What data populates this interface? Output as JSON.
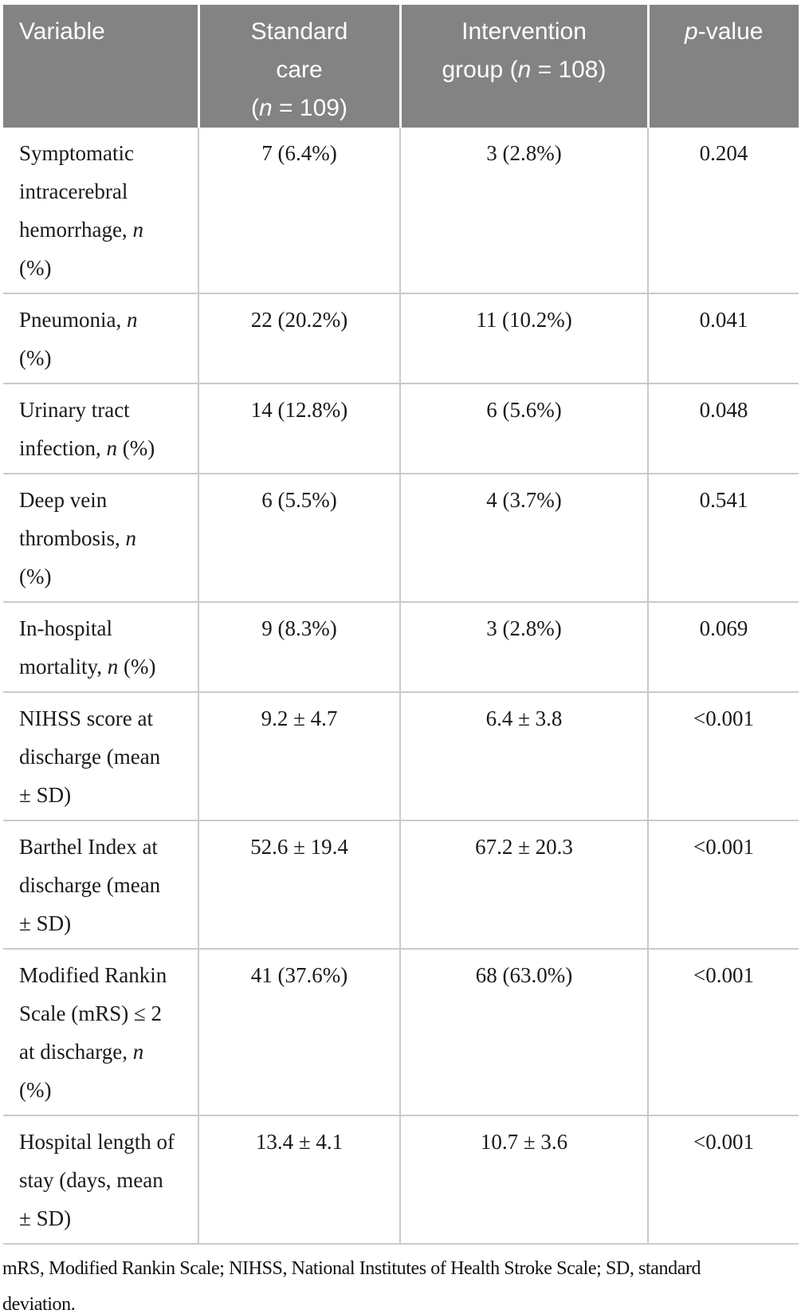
{
  "colors": {
    "header_bg": "#838383",
    "header_text": "#ffffff",
    "grid_line": "#cacaca",
    "body_text": "#1a1a1a"
  },
  "table": {
    "header": [
      {
        "id": "variable",
        "lines": [
          [
            {
              "t": "Variable"
            }
          ]
        ]
      },
      {
        "id": "standard-care",
        "lines": [
          [
            {
              "t": "Standard"
            }
          ],
          [
            {
              "t": "care"
            }
          ],
          [
            {
              "t": "("
            },
            {
              "t": "n",
              "i": true
            },
            {
              "t": " = 109)"
            }
          ]
        ]
      },
      {
        "id": "intervention-group",
        "lines": [
          [
            {
              "t": "Intervention"
            }
          ],
          [
            {
              "t": "group ("
            },
            {
              "t": "n",
              "i": true
            },
            {
              "t": " = 108)"
            }
          ]
        ]
      },
      {
        "id": "p-value",
        "lines": [
          [
            {
              "t": "p",
              "i": true
            },
            {
              "t": "-value"
            }
          ]
        ]
      }
    ],
    "rows": [
      {
        "variable": [
          [
            {
              "t": "Symptomatic"
            }
          ],
          [
            {
              "t": "intracerebral"
            }
          ],
          [
            {
              "t": "hemorrhage, "
            },
            {
              "t": "n",
              "i": true
            }
          ],
          [
            {
              "t": "(%)"
            }
          ]
        ],
        "standard_care": "7 (6.4%)",
        "intervention": "3 (2.8%)",
        "p_value": "0.204"
      },
      {
        "variable": [
          [
            {
              "t": "Pneumonia, "
            },
            {
              "t": "n",
              "i": true
            }
          ],
          [
            {
              "t": "(%)"
            }
          ]
        ],
        "standard_care": "22 (20.2%)",
        "intervention": "11 (10.2%)",
        "p_value": "0.041"
      },
      {
        "variable": [
          [
            {
              "t": "Urinary tract"
            }
          ],
          [
            {
              "t": "infection, "
            },
            {
              "t": "n",
              "i": true
            },
            {
              "t": " (%)"
            }
          ]
        ],
        "standard_care": "14 (12.8%)",
        "intervention": "6 (5.6%)",
        "p_value": "0.048"
      },
      {
        "variable": [
          [
            {
              "t": "Deep vein"
            }
          ],
          [
            {
              "t": "thrombosis, "
            },
            {
              "t": "n",
              "i": true
            }
          ],
          [
            {
              "t": "(%)"
            }
          ]
        ],
        "standard_care": "6 (5.5%)",
        "intervention": "4 (3.7%)",
        "p_value": "0.541"
      },
      {
        "variable": [
          [
            {
              "t": "In-hospital"
            }
          ],
          [
            {
              "t": "mortality, "
            },
            {
              "t": "n",
              "i": true
            },
            {
              "t": " (%)"
            }
          ]
        ],
        "standard_care": "9 (8.3%)",
        "intervention": "3 (2.8%)",
        "p_value": "0.069"
      },
      {
        "variable": [
          [
            {
              "t": "NIHSS score at"
            }
          ],
          [
            {
              "t": "discharge (mean"
            }
          ],
          [
            {
              "t": "± SD)"
            }
          ]
        ],
        "standard_care": "9.2 ± 4.7",
        "intervention": "6.4 ± 3.8",
        "p_value": "<0.001"
      },
      {
        "variable": [
          [
            {
              "t": "Barthel Index at"
            }
          ],
          [
            {
              "t": "discharge (mean"
            }
          ],
          [
            {
              "t": "± SD)"
            }
          ]
        ],
        "standard_care": "52.6 ± 19.4",
        "intervention": "67.2 ± 20.3",
        "p_value": "<0.001"
      },
      {
        "variable": [
          [
            {
              "t": "Modified Rankin"
            }
          ],
          [
            {
              "t": "Scale (mRS) ≤ 2"
            }
          ],
          [
            {
              "t": "at discharge, "
            },
            {
              "t": "n",
              "i": true
            }
          ],
          [
            {
              "t": "(%)"
            }
          ]
        ],
        "standard_care": "41 (37.6%)",
        "intervention": "68 (63.0%)",
        "p_value": "<0.001"
      },
      {
        "variable": [
          [
            {
              "t": "Hospital length of"
            }
          ],
          [
            {
              "t": "stay (days, mean"
            }
          ],
          [
            {
              "t": "± SD)"
            }
          ]
        ],
        "standard_care": "13.4 ± 4.1",
        "intervention": "10.7 ± 3.6",
        "p_value": "<0.001"
      }
    ],
    "footnote_lines": [
      [
        {
          "t": "mRS, Modified Rankin Scale; NIHSS, National Institutes of Health Stroke Scale; SD, standard"
        }
      ],
      [
        {
          "t": "deviation."
        }
      ]
    ]
  }
}
